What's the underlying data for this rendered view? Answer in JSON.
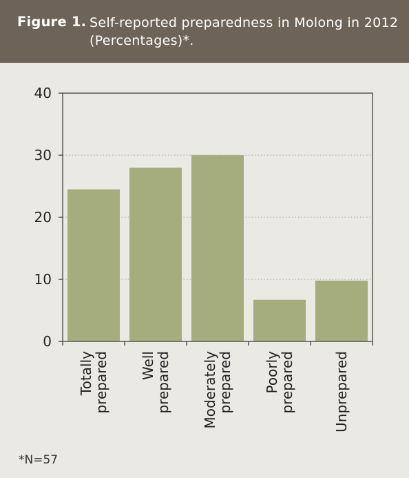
{
  "header": {
    "label": "Figure 1.",
    "title": "Self-reported preparedness in Molong in 2012 (Percentages)*."
  },
  "footnote": "*N=57",
  "colors": {
    "header_bg": "#6e6357",
    "page_bg": "#ebe9e4",
    "bar": "#a5ad7c",
    "axis": "#555555",
    "grid": "#9a9a9a"
  },
  "chart_data": {
    "type": "bar",
    "categories": [
      [
        "Totally",
        "prepared"
      ],
      [
        "Well",
        "prepared"
      ],
      [
        "Moderately",
        "prepared"
      ],
      [
        "Poorly",
        "prepared"
      ],
      [
        "Unprepared"
      ]
    ],
    "values": [
      24.5,
      28,
      30,
      6.7,
      9.8
    ],
    "yticks": [
      0,
      10,
      20,
      30,
      40
    ],
    "ylim": [
      0,
      40
    ],
    "grid": "dotted horizontal",
    "legend": "none"
  }
}
